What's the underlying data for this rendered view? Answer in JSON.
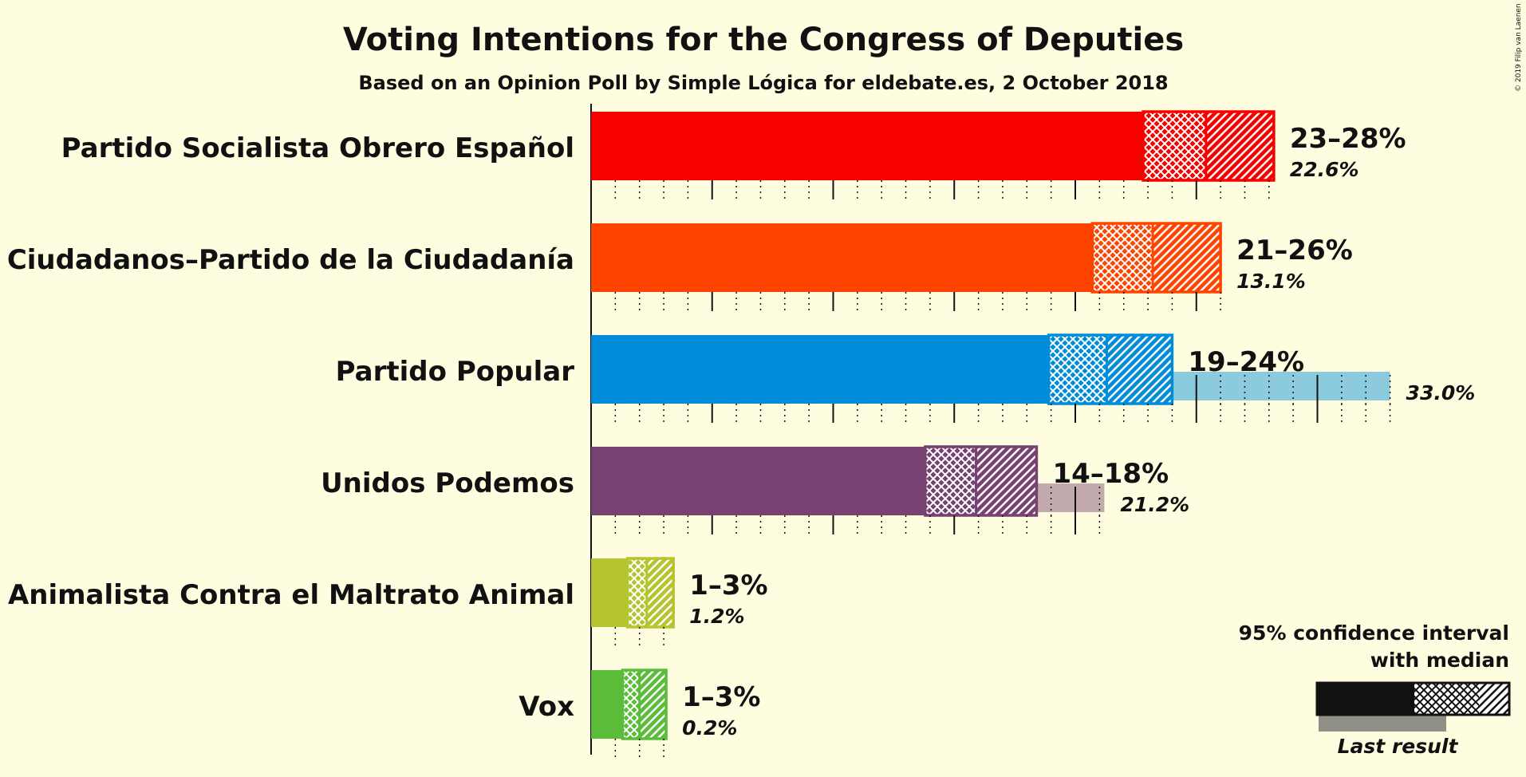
{
  "copyright": "© 2019 Filip van Laenen",
  "legend": {
    "line1": "95% confidence interval",
    "line2": "with median",
    "last_result": "Last result"
  },
  "colors": {
    "background": "#FFFDE0",
    "PSOE": "#F70000",
    "Cs": "#FF4400",
    "PP": "#008CD9",
    "UP": "#774271",
    "PACMA": "#B5C42F",
    "Vox": "#5BBC3A"
  },
  "chart_data": {
    "type": "bar",
    "orientation": "horizontal",
    "title": "Voting Intentions for the Congress of Deputies",
    "subtitle": "Based on an Opinion Poll by Simple Lógica for eldebate.es, 2 October 2018",
    "xlim": [
      0,
      35
    ],
    "categories": [
      "Partido Socialista Obrero Español",
      "Ciudadanos–Partido de la Ciudadanía",
      "Partido Popular",
      "Unidos Podemos",
      "Partido Animalista Contra el Maltrato Animal",
      "Vox"
    ],
    "series": [
      {
        "name": "Partido Socialista Obrero Español",
        "key": "PSOE",
        "ci_low": 22.8,
        "median": 25.4,
        "ci_high": 28.2,
        "range_label": "23–28%",
        "last_result": 22.6,
        "last_label": "22.6%"
      },
      {
        "name": "Ciudadanos–Partido de la Ciudadanía",
        "key": "Cs",
        "ci_low": 20.7,
        "median": 23.2,
        "ci_high": 26.0,
        "range_label": "21–26%",
        "last_result": 13.1,
        "last_label": "13.1%"
      },
      {
        "name": "Partido Popular",
        "key": "PP",
        "ci_low": 18.9,
        "median": 21.3,
        "ci_high": 24.0,
        "range_label": "19–24%",
        "last_result": 33.0,
        "last_label": "33.0%"
      },
      {
        "name": "Unidos Podemos",
        "key": "UP",
        "ci_low": 13.8,
        "median": 15.9,
        "ci_high": 18.4,
        "range_label": "14–18%",
        "last_result": 21.2,
        "last_label": "21.2%"
      },
      {
        "name": "Partido Animalista Contra el Maltrato Animal",
        "key": "PACMA",
        "ci_low": 1.5,
        "median": 2.3,
        "ci_high": 3.4,
        "range_label": "1–3%",
        "last_result": 1.2,
        "last_label": "1.2%"
      },
      {
        "name": "Vox",
        "key": "Vox",
        "ci_low": 1.3,
        "median": 2.0,
        "ci_high": 3.1,
        "range_label": "1–3%",
        "last_result": 0.2,
        "last_label": "0.2%"
      }
    ]
  }
}
